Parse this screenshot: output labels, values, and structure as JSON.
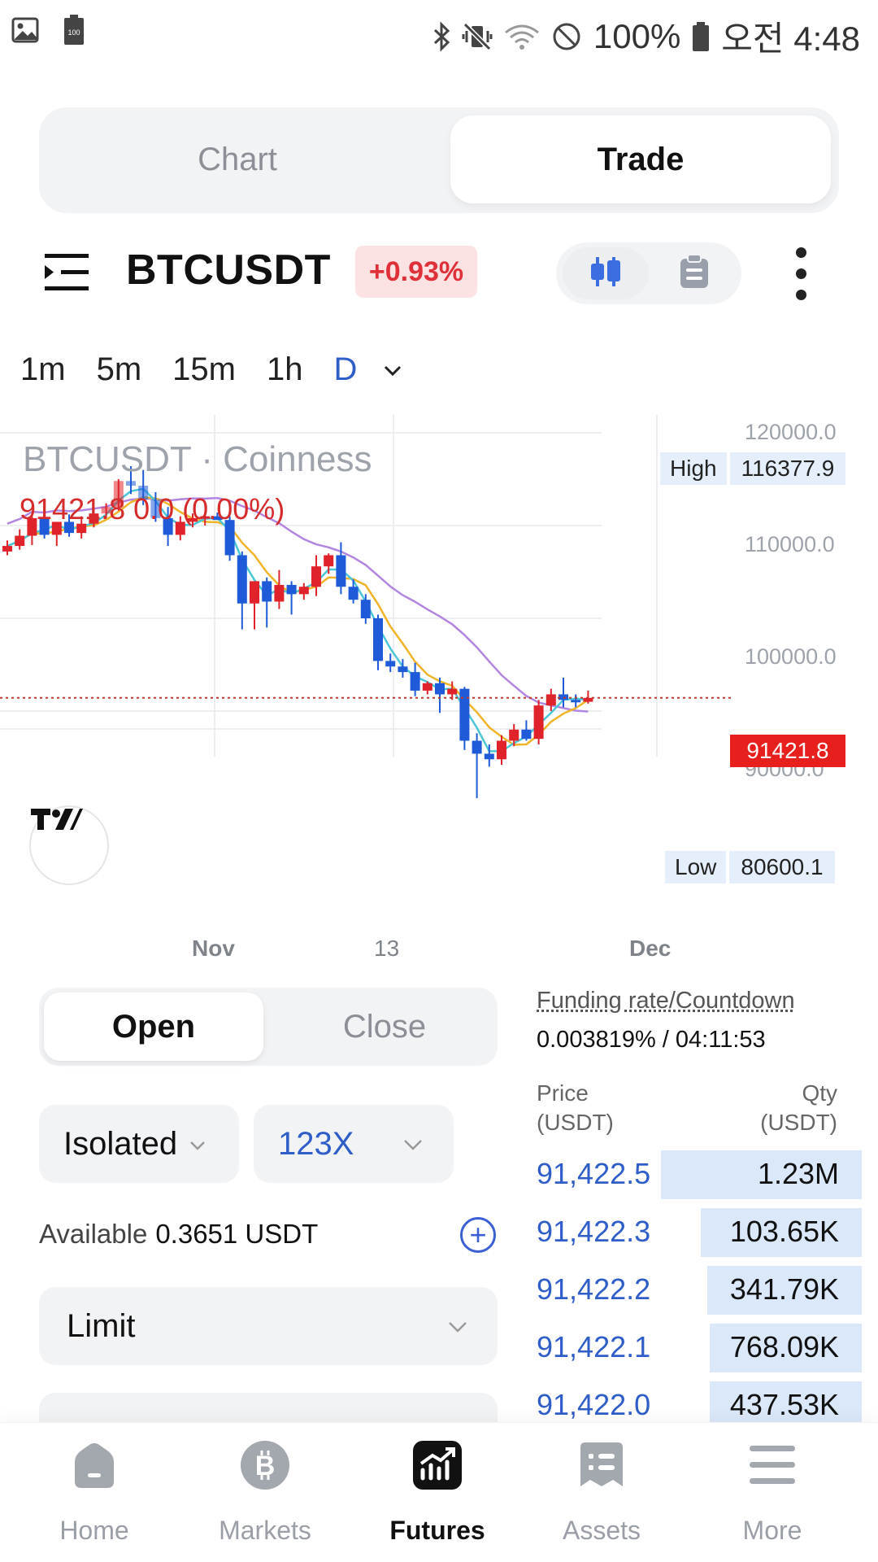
{
  "status_bar": {
    "battery_percent": "100%",
    "time": "오전 4:48",
    "small_battery_label": "100"
  },
  "segment": {
    "chart": "Chart",
    "trade": "Trade"
  },
  "symbol": {
    "name": "BTCUSDT",
    "change": "+0.93%",
    "view_icons": [
      "candles-icon",
      "clipboard-icon"
    ]
  },
  "timeframes": {
    "items": [
      "1m",
      "5m",
      "15m",
      "1h",
      "D"
    ],
    "selected": "D"
  },
  "chart": {
    "title": "BTCUSDT · Coinness",
    "last_line": "91421.8  0.0 (0.00%)",
    "high_label": "High",
    "high_value": "116377.9",
    "low_label": "Low",
    "low_value": "80600.1",
    "last_price": "91421.8",
    "y_ticks": [
      "120000.0",
      "110000.0",
      "100000.0",
      "90000.0"
    ],
    "x_ticks": [
      "Nov",
      "13",
      "Dec"
    ]
  },
  "chart_data": {
    "type": "candlestick",
    "title": "BTCUSDT · Coinness",
    "ylim": [
      80000,
      121000
    ],
    "y_ticks": [
      120000,
      110000,
      100000,
      90000
    ],
    "x_ticks": [
      "Nov",
      "13",
      "Dec"
    ],
    "last_price": 91421.8,
    "high": 116377.9,
    "low": 80600.1,
    "candles": [
      {
        "o": 107200,
        "h": 108400,
        "l": 106800,
        "c": 107800
      },
      {
        "o": 107800,
        "h": 109600,
        "l": 107400,
        "c": 108900
      },
      {
        "o": 108900,
        "h": 111000,
        "l": 107900,
        "c": 110800
      },
      {
        "o": 110800,
        "h": 111600,
        "l": 108600,
        "c": 109000
      },
      {
        "o": 109000,
        "h": 110400,
        "l": 107800,
        "c": 110400
      },
      {
        "o": 110400,
        "h": 111200,
        "l": 108800,
        "c": 109200
      },
      {
        "o": 109200,
        "h": 111000,
        "l": 108600,
        "c": 110200
      },
      {
        "o": 110200,
        "h": 112000,
        "l": 109800,
        "c": 111300
      },
      {
        "o": 111300,
        "h": 112400,
        "l": 110800,
        "c": 112000
      },
      {
        "o": 112000,
        "h": 115000,
        "l": 111600,
        "c": 114800
      },
      {
        "o": 114800,
        "h": 116400,
        "l": 113400,
        "c": 114300
      },
      {
        "o": 114300,
        "h": 116000,
        "l": 112200,
        "c": 112800
      },
      {
        "o": 112800,
        "h": 113600,
        "l": 110400,
        "c": 110800
      },
      {
        "o": 110800,
        "h": 112000,
        "l": 107800,
        "c": 109000
      },
      {
        "o": 109000,
        "h": 111000,
        "l": 108400,
        "c": 110400
      },
      {
        "o": 110400,
        "h": 111300,
        "l": 109800,
        "c": 110800
      },
      {
        "o": 110800,
        "h": 111200,
        "l": 110000,
        "c": 111000
      },
      {
        "o": 111000,
        "h": 111400,
        "l": 110600,
        "c": 110600
      },
      {
        "o": 110600,
        "h": 111000,
        "l": 106200,
        "c": 106800
      },
      {
        "o": 106800,
        "h": 107200,
        "l": 98800,
        "c": 101600
      },
      {
        "o": 101600,
        "h": 104000,
        "l": 98800,
        "c": 104000
      },
      {
        "o": 104000,
        "h": 104400,
        "l": 99000,
        "c": 101800
      },
      {
        "o": 101800,
        "h": 105200,
        "l": 101000,
        "c": 103600
      },
      {
        "o": 103600,
        "h": 104000,
        "l": 100400,
        "c": 102600
      },
      {
        "o": 102600,
        "h": 103800,
        "l": 102000,
        "c": 103400
      },
      {
        "o": 103400,
        "h": 106800,
        "l": 102400,
        "c": 105600
      },
      {
        "o": 105600,
        "h": 107000,
        "l": 104800,
        "c": 106800
      },
      {
        "o": 106800,
        "h": 108200,
        "l": 102600,
        "c": 103400
      },
      {
        "o": 103400,
        "h": 104200,
        "l": 101600,
        "c": 102000
      },
      {
        "o": 102000,
        "h": 102600,
        "l": 99400,
        "c": 100000
      },
      {
        "o": 100000,
        "h": 100400,
        "l": 94400,
        "c": 95400
      },
      {
        "o": 95400,
        "h": 96200,
        "l": 94200,
        "c": 94800
      },
      {
        "o": 94800,
        "h": 95600,
        "l": 93600,
        "c": 94200
      },
      {
        "o": 94200,
        "h": 95200,
        "l": 91600,
        "c": 92200
      },
      {
        "o": 92200,
        "h": 93200,
        "l": 91800,
        "c": 93000
      },
      {
        "o": 93000,
        "h": 93600,
        "l": 89800,
        "c": 91800
      },
      {
        "o": 91800,
        "h": 93200,
        "l": 91200,
        "c": 92400
      },
      {
        "o": 92400,
        "h": 92600,
        "l": 85800,
        "c": 86800
      },
      {
        "o": 86800,
        "h": 87600,
        "l": 80600,
        "c": 85400
      },
      {
        "o": 85400,
        "h": 86400,
        "l": 84000,
        "c": 84800
      },
      {
        "o": 84800,
        "h": 87400,
        "l": 84200,
        "c": 86800
      },
      {
        "o": 86800,
        "h": 88600,
        "l": 86200,
        "c": 88000
      },
      {
        "o": 88000,
        "h": 89000,
        "l": 86800,
        "c": 87000
      },
      {
        "o": 87000,
        "h": 91200,
        "l": 86400,
        "c": 90600
      },
      {
        "o": 90600,
        "h": 92400,
        "l": 90000,
        "c": 91800
      },
      {
        "o": 91800,
        "h": 93600,
        "l": 90400,
        "c": 91200
      },
      {
        "o": 91200,
        "h": 91800,
        "l": 90400,
        "c": 91000
      },
      {
        "o": 91000,
        "h": 92200,
        "l": 90800,
        "c": 91421.8
      }
    ],
    "ma_colors": {
      "fast": "#4ac6d6",
      "mid": "#f0b429",
      "slow": "#b285e0"
    },
    "up_color": "#e0232a",
    "down_color": "#1f5bd8"
  },
  "order": {
    "open": "Open",
    "close": "Close",
    "margin_mode": "Isolated",
    "leverage": "123X",
    "available_label": "Available",
    "available_value": "0.3651 USDT",
    "order_type": "Limit"
  },
  "funding": {
    "label": "Funding rate/Countdown",
    "value": "0.003819% / 04:11:53"
  },
  "orderbook": {
    "price_header": [
      "Price",
      "(USDT)"
    ],
    "qty_header": [
      "Qty",
      "(USDT)"
    ],
    "rows": [
      {
        "price": "91,422.5",
        "qty": "1.23M",
        "fill": 0.95
      },
      {
        "price": "91,422.3",
        "qty": "103.65K",
        "fill": 0.76
      },
      {
        "price": "91,422.2",
        "qty": "341.79K",
        "fill": 0.73
      },
      {
        "price": "91,422.1",
        "qty": "768.09K",
        "fill": 0.72
      },
      {
        "price": "91,422.0",
        "qty": "437.53K",
        "fill": 0.72
      }
    ]
  },
  "bottom_nav": {
    "items": [
      {
        "label": "Home",
        "icon": "home-icon"
      },
      {
        "label": "Markets",
        "icon": "bitcoin-icon"
      },
      {
        "label": "Futures",
        "icon": "futures-chart-icon"
      },
      {
        "label": "Assets",
        "icon": "assets-list-icon"
      },
      {
        "label": "More",
        "icon": "hamburger-icon"
      }
    ],
    "active": "Futures"
  }
}
